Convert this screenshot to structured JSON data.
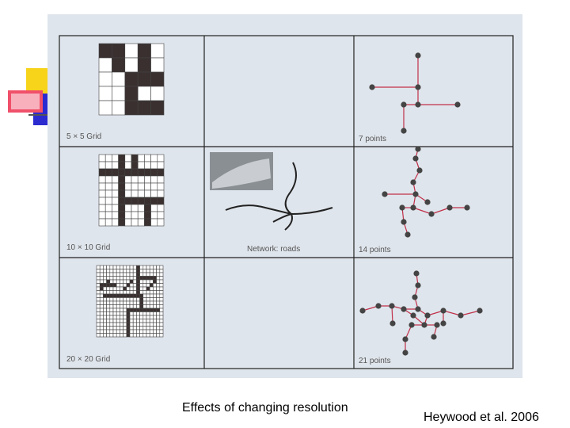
{
  "figure": {
    "labels": {
      "grid5": "5 × 5 Grid",
      "points7": "7 points",
      "grid10": "10 × 10 Grid",
      "network": "Network: roads",
      "points14": "14 points",
      "grid20": "20 × 20 Grid",
      "points21": "21 points"
    }
  },
  "caption": "Effects of changing resolution",
  "credit": "Heywood et al. 2006"
}
